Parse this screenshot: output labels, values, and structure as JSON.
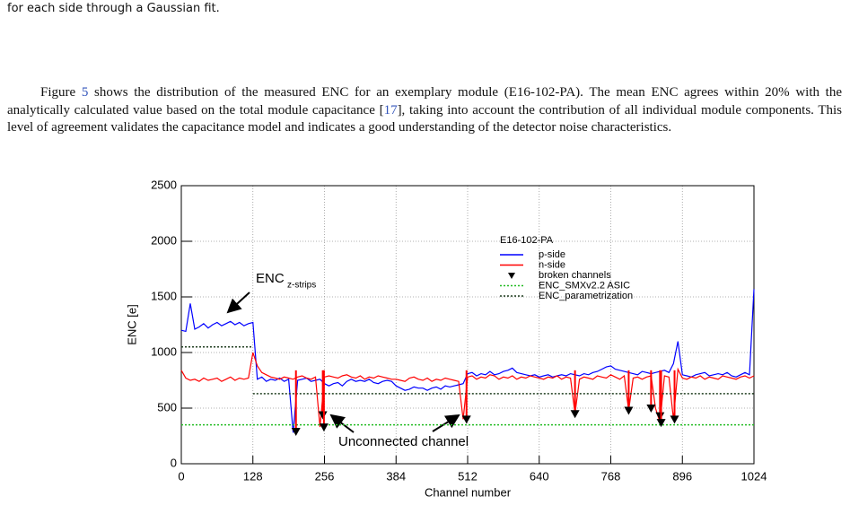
{
  "top_text": "for each side through a Gaussian fit.",
  "paragraph": [
    "Figure ",
    "5",
    " shows the distribution of the measured ENC for an exemplary module (E16-102-PA). The mean ENC agrees within 20% with the analytically calculated value based on the total module capacitance ",
    "[",
    "17",
    "], taking into account the contribution of all individual module components. This level of agreement validates the capacitance model and indicates a good understanding of the detector noise characteristics."
  ],
  "chart_data": {
    "type": "line",
    "xlabel": "Channel number",
    "ylabel": "ENC [e]",
    "xlim": [
      0,
      1024
    ],
    "ylim": [
      0,
      2500
    ],
    "xticks": [
      0,
      128,
      256,
      384,
      512,
      640,
      768,
      896,
      1024
    ],
    "yticks": [
      0,
      500,
      1000,
      1500,
      2000,
      2500
    ],
    "grid": true,
    "legend_title": "E16-102-PA",
    "annotations": [
      "ENC",
      "z-strips",
      "Unconnected channel"
    ],
    "series": [
      {
        "name": "p-side",
        "color": "#0000ff",
        "linestyle": "solid",
        "x": [
          0,
          8,
          16,
          24,
          32,
          40,
          48,
          56,
          64,
          72,
          80,
          88,
          96,
          104,
          112,
          120,
          128,
          136,
          144,
          152,
          160,
          168,
          176,
          184,
          192,
          200,
          208,
          216,
          224,
          232,
          240,
          248,
          256,
          264,
          272,
          280,
          288,
          296,
          304,
          312,
          320,
          328,
          336,
          344,
          352,
          360,
          368,
          376,
          384,
          392,
          400,
          408,
          416,
          424,
          432,
          440,
          448,
          456,
          464,
          472,
          480,
          488,
          496,
          504,
          512,
          520,
          528,
          536,
          544,
          552,
          560,
          568,
          576,
          584,
          592,
          600,
          608,
          616,
          624,
          632,
          640,
          648,
          656,
          664,
          672,
          680,
          688,
          696,
          704,
          712,
          720,
          728,
          736,
          744,
          752,
          760,
          768,
          776,
          784,
          792,
          800,
          808,
          816,
          824,
          832,
          840,
          848,
          856,
          864,
          872,
          880,
          888,
          896,
          904,
          912,
          920,
          928,
          936,
          944,
          952,
          960,
          968,
          976,
          984,
          992,
          1000,
          1008,
          1016,
          1024
        ],
        "values": [
          1200,
          1190,
          1440,
          1210,
          1230,
          1260,
          1220,
          1250,
          1270,
          1240,
          1260,
          1280,
          1250,
          1270,
          1240,
          1260,
          1270,
          760,
          780,
          740,
          760,
          750,
          770,
          740,
          760,
          280,
          750,
          760,
          770,
          740,
          750,
          760,
          720,
          700,
          720,
          730,
          700,
          740,
          760,
          740,
          750,
          740,
          760,
          730,
          720,
          740,
          750,
          740,
          700,
          680,
          660,
          670,
          690,
          680,
          680,
          660,
          680,
          690,
          670,
          700,
          690,
          700,
          710,
          720,
          810,
          820,
          790,
          810,
          800,
          830,
          800,
          810,
          830,
          840,
          860,
          820,
          810,
          800,
          790,
          800,
          780,
          790,
          800,
          780,
          790,
          800,
          790,
          810,
          800,
          790,
          810,
          800,
          820,
          830,
          850,
          870,
          880,
          850,
          840,
          830,
          820,
          810,
          800,
          830,
          820,
          810,
          820,
          830,
          840,
          820,
          900,
          1100,
          800,
          790,
          780,
          800,
          810,
          820,
          790,
          800,
          810,
          800,
          820,
          790,
          780,
          800,
          820,
          800,
          1570
        ]
      },
      {
        "name": "n-side",
        "color": "#ff0000",
        "linestyle": "solid",
        "x": [
          0,
          8,
          16,
          24,
          32,
          40,
          48,
          56,
          64,
          72,
          80,
          88,
          96,
          104,
          112,
          120,
          128,
          136,
          144,
          152,
          160,
          168,
          176,
          184,
          192,
          200,
          208,
          216,
          224,
          232,
          240,
          248,
          256,
          264,
          272,
          280,
          288,
          296,
          304,
          312,
          320,
          328,
          336,
          344,
          352,
          360,
          368,
          376,
          384,
          392,
          400,
          408,
          416,
          424,
          432,
          440,
          448,
          456,
          464,
          472,
          480,
          488,
          496,
          504,
          512,
          520,
          528,
          536,
          544,
          552,
          560,
          568,
          576,
          584,
          592,
          600,
          608,
          616,
          624,
          632,
          640,
          648,
          656,
          664,
          672,
          680,
          688,
          696,
          704,
          712,
          720,
          728,
          736,
          744,
          752,
          760,
          768,
          776,
          784,
          792,
          800,
          808,
          816,
          824,
          832,
          840,
          848,
          856,
          864,
          872,
          880,
          888,
          896,
          904,
          912,
          920,
          928,
          936,
          944,
          952,
          960,
          968,
          976,
          984,
          992,
          1000,
          1008,
          1016,
          1024
        ],
        "values": [
          840,
          770,
          750,
          760,
          740,
          770,
          750,
          760,
          770,
          740,
          760,
          780,
          750,
          770,
          760,
          770,
          1000,
          880,
          820,
          800,
          780,
          770,
          760,
          780,
          770,
          760,
          780,
          790,
          770,
          760,
          780,
          330,
          780,
          790,
          780,
          770,
          790,
          800,
          780,
          770,
          790,
          760,
          780,
          770,
          790,
          780,
          770,
          760,
          760,
          750,
          740,
          770,
          780,
          760,
          750,
          770,
          740,
          760,
          750,
          770,
          760,
          750,
          740,
          400,
          780,
          790,
          760,
          780,
          770,
          800,
          790,
          760,
          780,
          770,
          790,
          760,
          780,
          770,
          790,
          780,
          770,
          760,
          780,
          770,
          790,
          760,
          780,
          770,
          450,
          760,
          780,
          770,
          760,
          790,
          780,
          770,
          800,
          780,
          760,
          790,
          480,
          770,
          780,
          760,
          780,
          790,
          500,
          370,
          790,
          780,
          400,
          850,
          770,
          760,
          780,
          770,
          790,
          760,
          780,
          770,
          760,
          790,
          780,
          770,
          760,
          780,
          790,
          770,
          790
        ]
      },
      {
        "name": "broken channels",
        "color": "#000000",
        "marker": "triangle-down",
        "x": [
          205,
          253,
          255,
          510,
          704,
          800,
          840,
          856,
          858,
          882
        ],
        "values": [
          290,
          440,
          330,
          400,
          450,
          480,
          500,
          430,
          370,
          400
        ]
      },
      {
        "name": "ENC_SMXv2.2 ASIC",
        "color": "#22bb22",
        "linestyle": "dotted",
        "x": [
          0,
          1024
        ],
        "values": [
          350,
          350
        ]
      },
      {
        "name": "ENC_parametrization",
        "color": "#1f3d1f",
        "linestyle": "dotted",
        "x": [
          0,
          128,
          128,
          128,
          1024
        ],
        "values": [
          1050,
          1050,
          null,
          630,
          630
        ]
      }
    ]
  }
}
